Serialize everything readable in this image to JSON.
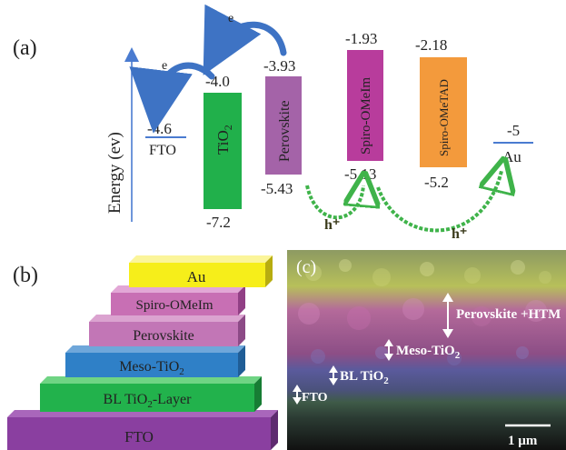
{
  "panel_a": {
    "label": "(a)",
    "y_axis_label": "Energy (ev)",
    "electron_symbol": "e",
    "hole_symbol": "h⁺",
    "fto": {
      "name": "FTO",
      "level": "-4.6",
      "color": "#4a7bd0"
    },
    "tio2": {
      "name_main": "TiO",
      "name_sub": "2",
      "cb": "-4.0",
      "vb": "-7.2",
      "color": "#21b04b"
    },
    "perovskite": {
      "name": "Perovskite",
      "cb": "-3.93",
      "vb": "-5.43",
      "color": "#a463a8"
    },
    "spiro_omeim": {
      "name": "Spiro-OMeIm",
      "lumo": "-1.93",
      "homo": "-5.13",
      "color": "#b83c9c"
    },
    "spiro_ometad": {
      "name": "Spiro-OMeTAD",
      "lumo": "-2.18",
      "homo": "-5.2",
      "color": "#f39a3c"
    },
    "au": {
      "name": "Au",
      "level": "-5",
      "color": "#4a7bd0"
    },
    "arrow_color": "#3e73c4",
    "hole_arrow_color": "#3fb34a"
  },
  "panel_b": {
    "label": "(b)",
    "layers": [
      {
        "name": "Au",
        "sub": "",
        "color": "#f6ee1a"
      },
      {
        "name": "Spiro-OMeIm",
        "sub": "",
        "color": "#c86fb4"
      },
      {
        "name": "Perovskite",
        "sub": "",
        "color": "#c276b6"
      },
      {
        "name": "Meso-TiO",
        "sub": "2",
        "color": "#2f80c7"
      },
      {
        "name": "BL TiO",
        "sub": "2",
        "suffix": "-Layer",
        "color": "#22b24c"
      },
      {
        "name": "FTO",
        "sub": "",
        "color": "#8a3fa0"
      }
    ]
  },
  "panel_c": {
    "label": "(c)",
    "annotations": {
      "perovskite_htm": "Perovskite +HTM",
      "meso_tio2_main": "Meso-TiO",
      "meso_tio2_sub": "2",
      "bl_tio2_main": "BL TiO",
      "bl_tio2_sub": "2",
      "fto": "FTO"
    },
    "scale_bar": "1 µm"
  }
}
